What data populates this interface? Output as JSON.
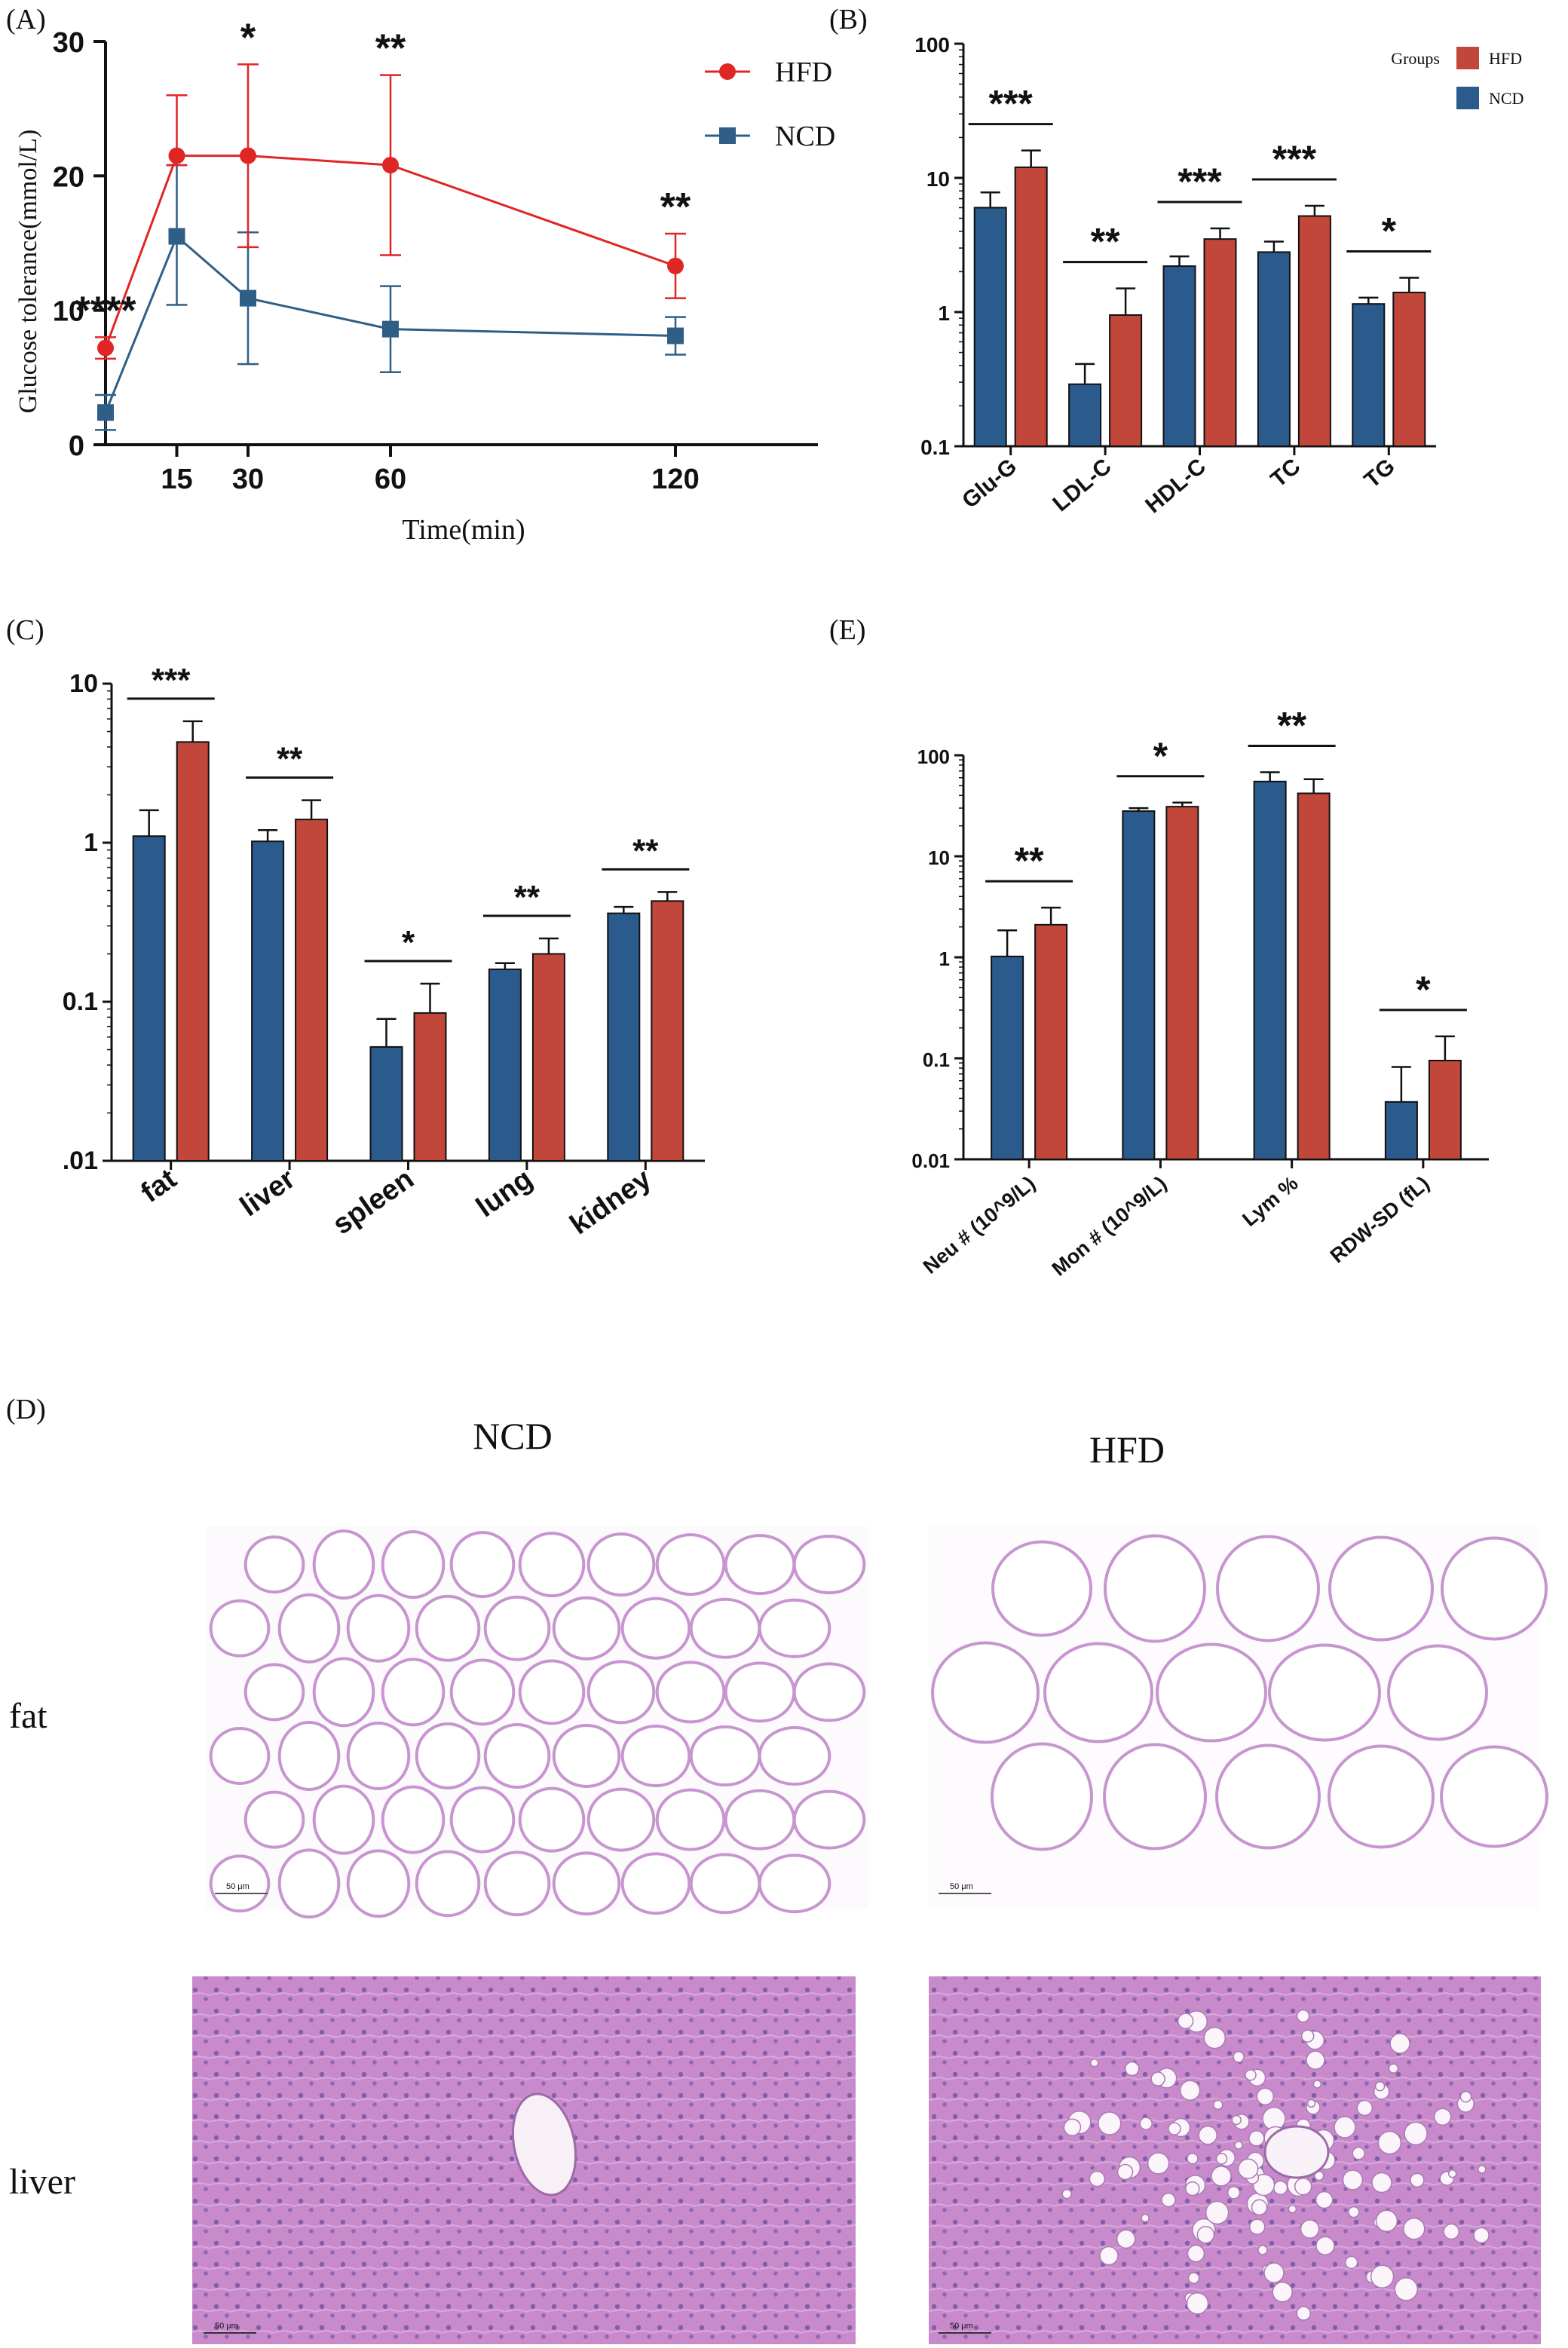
{
  "colors": {
    "ncd": "#2B5A8C",
    "hfd": "#C1473A",
    "hfd_line": "#E02525",
    "ncd_line": "#2F5E87",
    "axis": "#111111"
  },
  "panel_labels": {
    "a": "(A)",
    "b": "(B)",
    "c": "(C)",
    "d": "(D)",
    "e": "(E)"
  },
  "chart_data": [
    {
      "id": "A",
      "type": "line",
      "xlabel": "Time(min)",
      "ylabel": "Glucose tolerance(mmol/L)",
      "xlim": [
        0,
        150
      ],
      "ylim": [
        0,
        30
      ],
      "x_ticks": [
        15,
        30,
        60,
        120
      ],
      "y_ticks": [
        0,
        10,
        20,
        30
      ],
      "x": [
        0,
        15,
        30,
        60,
        120
      ],
      "series": [
        {
          "name": "HFD",
          "values": [
            7.2,
            21.5,
            21.5,
            20.8,
            13.3
          ],
          "err_up": [
            0.8,
            4.5,
            6.8,
            6.7,
            2.4
          ],
          "err_dn": [
            0.8,
            0.7,
            6.8,
            6.7,
            2.4
          ]
        },
        {
          "name": "NCD",
          "values": [
            2.4,
            15.5,
            10.9,
            8.6,
            8.1
          ],
          "err_up": [
            1.3,
            5.3,
            4.9,
            3.2,
            1.4
          ],
          "err_dn": [
            1.3,
            5.1,
            4.9,
            3.2,
            1.4
          ]
        }
      ],
      "legend": [
        "HFD",
        "NCD"
      ],
      "significance": [
        "****",
        "",
        "*",
        "**",
        "**"
      ]
    },
    {
      "id": "B",
      "type": "bar",
      "log": true,
      "categories": [
        "Glu-G",
        "LDL-C",
        "HDL-C",
        "TC",
        "TG"
      ],
      "ylim": [
        0.1,
        100
      ],
      "y_ticks": [
        "0.1",
        "1",
        "10",
        "100"
      ],
      "series": [
        {
          "name": "NCD",
          "values": [
            6.0,
            0.29,
            2.2,
            2.8,
            1.15
          ],
          "err": [
            7.8,
            0.41,
            2.6,
            3.35,
            1.28
          ]
        },
        {
          "name": "HFD",
          "values": [
            12,
            0.95,
            3.5,
            5.2,
            1.4
          ],
          "err": [
            16,
            1.5,
            4.2,
            6.2,
            1.8
          ]
        }
      ],
      "significance": [
        "***",
        "**",
        "***",
        "***",
        "*"
      ],
      "legend_title": "Groups",
      "legend": [
        "HFD",
        "NCD"
      ]
    },
    {
      "id": "C",
      "type": "bar",
      "log": true,
      "categories": [
        "fat",
        "liver",
        "spleen",
        "lung",
        "kidney"
      ],
      "ylim": [
        0.01,
        10
      ],
      "y_ticks": [
        ".01",
        "0.1",
        "1",
        "10"
      ],
      "series": [
        {
          "name": "NCD",
          "values": [
            1.1,
            1.02,
            0.052,
            0.16,
            0.36
          ],
          "err": [
            1.6,
            1.2,
            0.078,
            0.175,
            0.395
          ]
        },
        {
          "name": "HFD",
          "values": [
            4.3,
            1.4,
            0.085,
            0.2,
            0.43
          ],
          "err": [
            5.8,
            1.85,
            0.13,
            0.25,
            0.49
          ]
        }
      ],
      "significance": [
        "***",
        "**",
        "*",
        "**",
        "**"
      ]
    },
    {
      "id": "E",
      "type": "bar",
      "log": true,
      "categories": [
        "Neu # (10^9/L)",
        "Mon # (10^9/L)",
        "Lym %",
        "RDW-SD (fL)"
      ],
      "ylim": [
        0.01,
        100
      ],
      "y_ticks": [
        "0.01",
        "0.1",
        "1",
        "10",
        "100"
      ],
      "series": [
        {
          "name": "NCD",
          "values": [
            1.02,
            28,
            55,
            0.037
          ],
          "err": [
            1.85,
            30,
            68,
            0.082
          ]
        },
        {
          "name": "HFD",
          "values": [
            2.1,
            31,
            42,
            0.095
          ],
          "err": [
            3.1,
            34,
            58,
            0.165
          ]
        }
      ],
      "significance": [
        "**",
        "*",
        "**",
        "*"
      ]
    }
  ],
  "panel_d": {
    "col_labels": [
      "NCD",
      "HFD"
    ],
    "row_labels": [
      "fat",
      "liver"
    ],
    "scale_text": "50 μm"
  }
}
